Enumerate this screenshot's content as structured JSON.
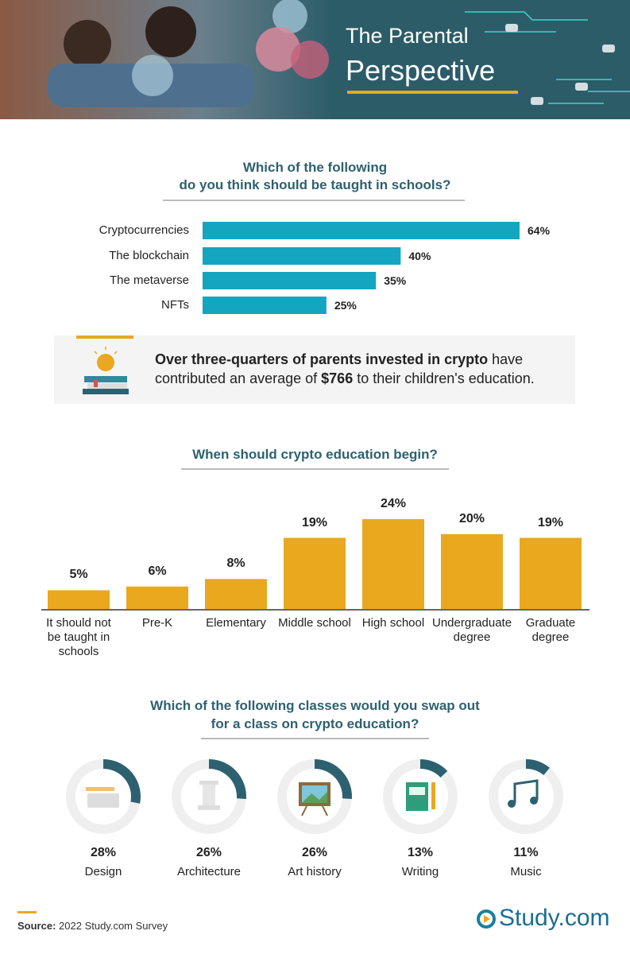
{
  "header": {
    "title_lines": [
      "The Parental",
      "Perspective"
    ]
  },
  "chart_data": [
    {
      "type": "hbar",
      "title": [
        "Which of the following",
        "do you think should be taught in schools?"
      ],
      "categories": [
        "Cryptocurrencies",
        "The blockchain",
        "The metaverse",
        "NFTs"
      ],
      "values": [
        64,
        40,
        35,
        25
      ],
      "value_labels": [
        "64%",
        "40%",
        "35%",
        "25%"
      ],
      "color": "#14a5c0"
    },
    {
      "type": "bar",
      "title": [
        "When should crypto education begin?"
      ],
      "categories": [
        "It should not be taught in schools",
        "Pre-K",
        "Elementary",
        "Middle school",
        "High school",
        "Undergraduate degree",
        "Graduate degree"
      ],
      "values": [
        5,
        6,
        8,
        19,
        24,
        20,
        19
      ],
      "value_labels": [
        "5%",
        "6%",
        "8%",
        "19%",
        "24%",
        "20%",
        "19%"
      ],
      "color": "#eaa81f"
    },
    {
      "type": "donut",
      "title": [
        "Which of the following classes would you swap out",
        "for a class on crypto education?"
      ],
      "categories": [
        "Design",
        "Architecture",
        "Art history",
        "Writing",
        "Music"
      ],
      "values": [
        28,
        26,
        26,
        13,
        11
      ],
      "value_labels": [
        "28%",
        "26%",
        "26%",
        "13%",
        "11%"
      ],
      "color": "#2d6170"
    }
  ],
  "callout": {
    "parts": [
      "Over three-quarters of parents invested in crypto",
      " have contributed an average of ",
      "$766",
      " to their children's education."
    ]
  },
  "footer": {
    "source_label": "Source:",
    "source": "2022 Study.com Survey",
    "logo": "Study.com"
  }
}
